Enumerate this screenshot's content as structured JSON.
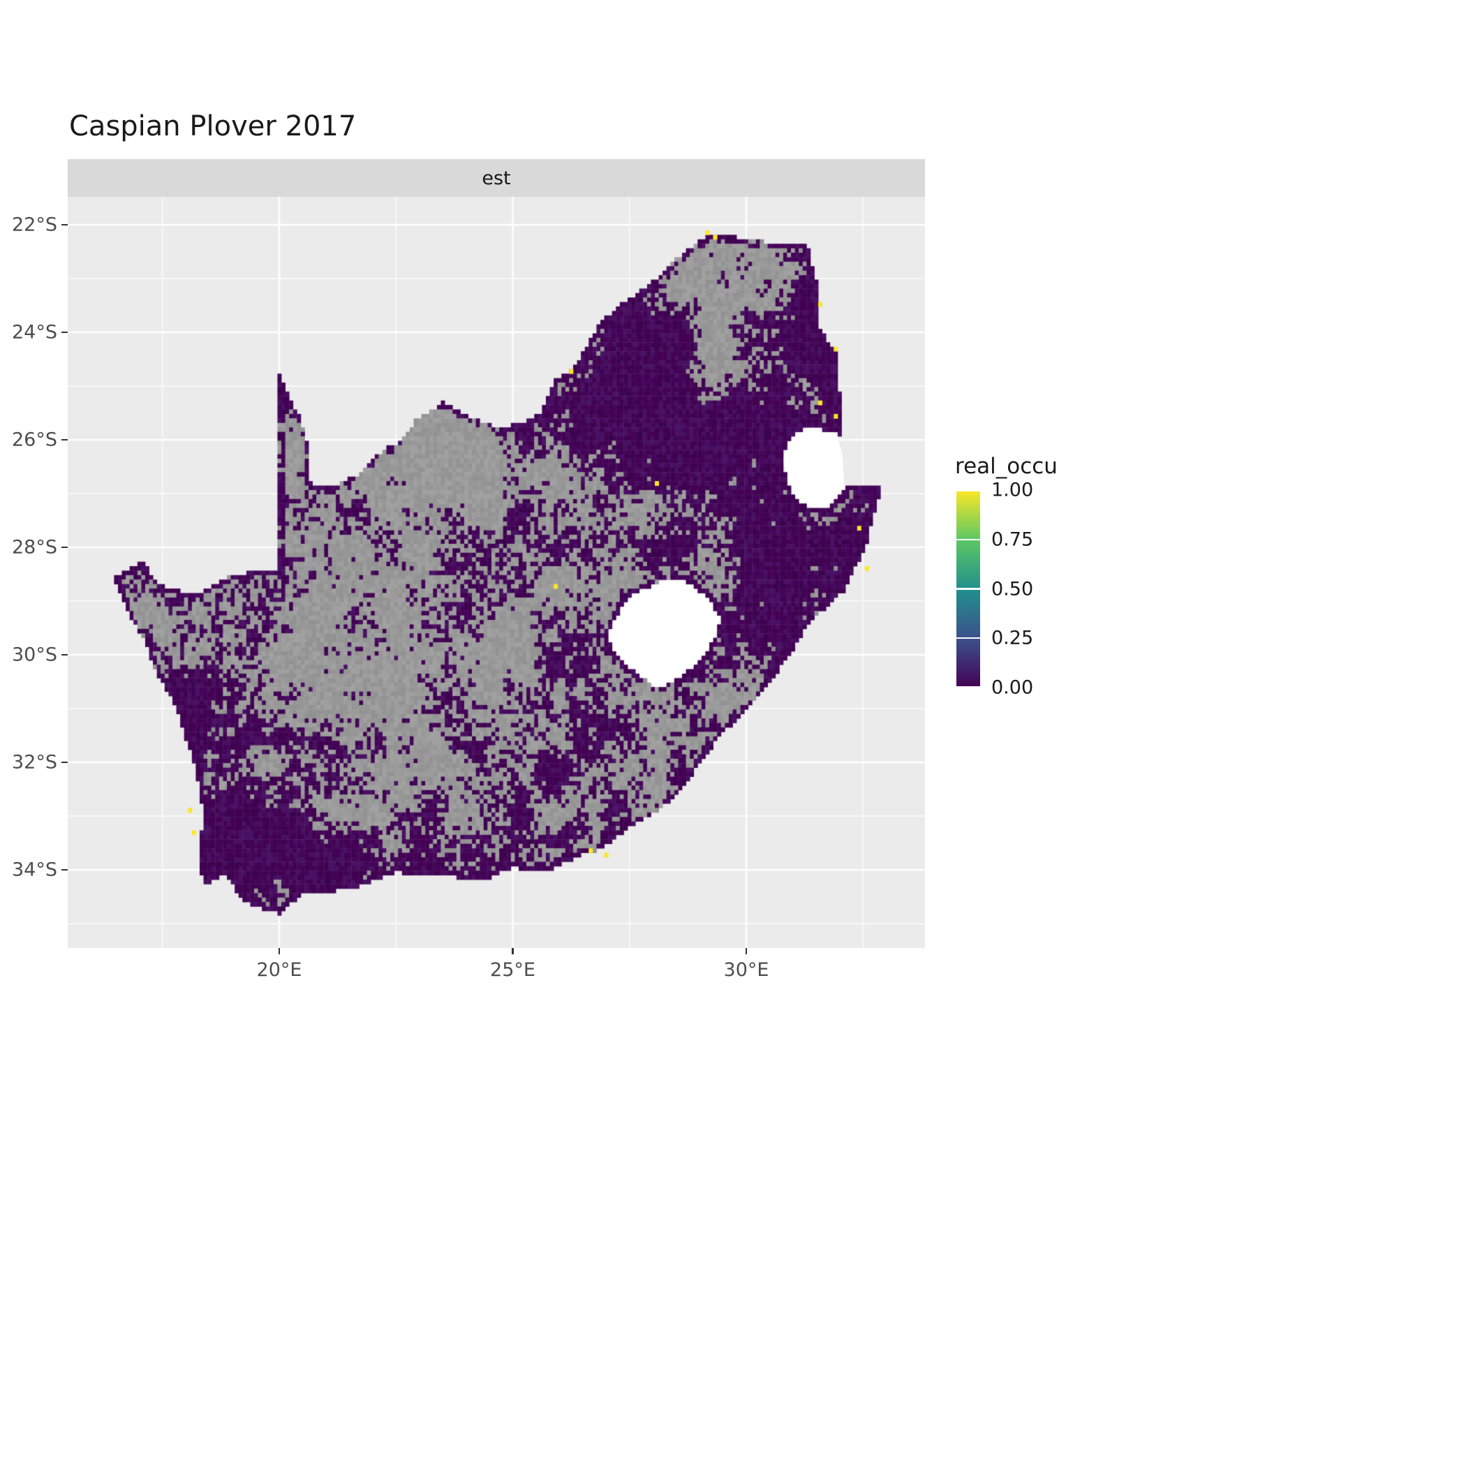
{
  "figure": {
    "background_color": "#FFFFFF",
    "panel_background_color": "#EBEBEB",
    "strip_background_color": "#D9D9D9",
    "gridline_color": "#FFFFFF",
    "axis_text_color": "#4D4D4D",
    "title_color": "#1A1A1A",
    "tick_mark_color": "#333333"
  },
  "chart_data": {
    "type": "heatmap",
    "subtype": "gridded-occupancy-raster-map",
    "region": "South Africa",
    "title": "Caspian Plover 2017",
    "facet": "est",
    "x_axis": {
      "label": "",
      "ticks": [
        {
          "value": 20,
          "label": "20°E"
        },
        {
          "value": 25,
          "label": "25°E"
        },
        {
          "value": 30,
          "label": "30°E"
        }
      ],
      "minor_gridlines": [
        17.5,
        22.5,
        27.5,
        32.5
      ],
      "visible_range_deg_east": [
        15.5,
        33.8
      ]
    },
    "y_axis": {
      "label": "",
      "ticks": [
        {
          "value": -22,
          "label": "22°S"
        },
        {
          "value": -24,
          "label": "24°S"
        },
        {
          "value": -26,
          "label": "26°S"
        },
        {
          "value": -28,
          "label": "28°S"
        },
        {
          "value": -30,
          "label": "30°S"
        },
        {
          "value": -32,
          "label": "32°S"
        },
        {
          "value": -34,
          "label": "34°S"
        }
      ],
      "minor_gridlines": [
        -23,
        -25,
        -27,
        -29,
        -31,
        -33,
        -35
      ],
      "visible_range_deg_lat": [
        -35.4,
        -21.5
      ]
    },
    "legend": {
      "title": "real_occu",
      "position": "right",
      "ticks": [
        {
          "value": 1.0,
          "label": "1.00"
        },
        {
          "value": 0.75,
          "label": "0.75"
        },
        {
          "value": 0.5,
          "label": "0.50"
        },
        {
          "value": 0.25,
          "label": "0.25"
        },
        {
          "value": 0.0,
          "label": "0.00"
        }
      ],
      "colormap": "viridis",
      "stops": [
        {
          "pos": 0.0,
          "color": "#440154"
        },
        {
          "pos": 0.25,
          "color": "#3B528B"
        },
        {
          "pos": 0.5,
          "color": "#21908C"
        },
        {
          "pos": 0.75,
          "color": "#5DC863"
        },
        {
          "pos": 1.0,
          "color": "#FDE725"
        }
      ]
    },
    "cell_size_deg": 0.0833,
    "cell_colors": {
      "occupancy_zero": "#440154",
      "occupancy_zero_palette": [
        "#440154",
        "#45065A",
        "#3D034F",
        "#481062"
      ],
      "no_data_gray": "#9A9A9A",
      "no_data_palette": [
        "#9B9B9B",
        "#969696",
        "#A0A0A0",
        "#929292"
      ],
      "occupancy_one": "#FDE725",
      "outside_region": "#EBEBEB",
      "enclave_fill": "#FFFFFF"
    },
    "high_occupancy_cells": [
      {
        "lon": 29.15,
        "lat": -22.15,
        "value": 1.0
      },
      {
        "lon": 29.3,
        "lat": -22.2,
        "value": 1.0
      },
      {
        "lon": 31.55,
        "lat": -23.45,
        "value": 1.0
      },
      {
        "lon": 31.9,
        "lat": -24.35,
        "value": 1.0
      },
      {
        "lon": 26.25,
        "lat": -24.75,
        "value": 1.0
      },
      {
        "lon": 31.6,
        "lat": -25.3,
        "value": 1.0
      },
      {
        "lon": 31.9,
        "lat": -25.6,
        "value": 1.0
      },
      {
        "lon": 28.05,
        "lat": -26.8,
        "value": 1.0
      },
      {
        "lon": 32.45,
        "lat": -27.65,
        "value": 1.0
      },
      {
        "lon": 32.55,
        "lat": -28.4,
        "value": 1.0
      },
      {
        "lon": 25.95,
        "lat": -28.75,
        "value": 1.0
      },
      {
        "lon": 18.1,
        "lat": -32.85,
        "value": 1.0
      },
      {
        "lon": 18.2,
        "lat": -33.3,
        "value": 1.0
      },
      {
        "lon": 26.7,
        "lat": -33.6,
        "value": 1.0
      },
      {
        "lon": 27.0,
        "lat": -33.75,
        "value": 1.0
      }
    ],
    "outline": [
      [
        16.45,
        -28.58
      ],
      [
        17.05,
        -28.25
      ],
      [
        17.45,
        -28.7
      ],
      [
        18.2,
        -28.88
      ],
      [
        19.0,
        -28.5
      ],
      [
        19.55,
        -28.45
      ],
      [
        19.99,
        -28.42
      ],
      [
        19.99,
        -24.77
      ],
      [
        20.45,
        -25.6
      ],
      [
        20.62,
        -26.15
      ],
      [
        20.68,
        -26.85
      ],
      [
        21.1,
        -26.87
      ],
      [
        21.7,
        -26.65
      ],
      [
        22.2,
        -26.2
      ],
      [
        22.65,
        -26.0
      ],
      [
        22.9,
        -25.65
      ],
      [
        23.5,
        -25.3
      ],
      [
        24.2,
        -25.62
      ],
      [
        24.75,
        -25.8
      ],
      [
        25.35,
        -25.62
      ],
      [
        25.6,
        -25.47
      ],
      [
        25.9,
        -24.9
      ],
      [
        26.3,
        -24.65
      ],
      [
        26.85,
        -23.85
      ],
      [
        27.2,
        -23.55
      ],
      [
        27.95,
        -23.1
      ],
      [
        28.35,
        -22.75
      ],
      [
        29.05,
        -22.25
      ],
      [
        29.45,
        -22.15
      ],
      [
        30.1,
        -22.3
      ],
      [
        31.3,
        -22.35
      ],
      [
        31.55,
        -23.2
      ],
      [
        31.55,
        -23.9
      ],
      [
        31.95,
        -24.4
      ],
      [
        32.0,
        -25.1
      ],
      [
        32.0,
        -25.95
      ],
      [
        31.4,
        -25.75
      ],
      [
        30.95,
        -25.95
      ],
      [
        30.78,
        -26.35
      ],
      [
        30.9,
        -26.85
      ],
      [
        31.15,
        -27.2
      ],
      [
        31.65,
        -27.3
      ],
      [
        31.97,
        -27.1
      ],
      [
        32.13,
        -26.85
      ],
      [
        32.9,
        -26.86
      ],
      [
        32.55,
        -28.0
      ],
      [
        32.1,
        -28.8
      ],
      [
        31.35,
        -29.4
      ],
      [
        31.05,
        -29.85
      ],
      [
        30.6,
        -30.4
      ],
      [
        30.2,
        -30.85
      ],
      [
        29.4,
        -31.55
      ],
      [
        28.9,
        -32.15
      ],
      [
        28.55,
        -32.6
      ],
      [
        28.0,
        -32.95
      ],
      [
        27.45,
        -33.25
      ],
      [
        26.9,
        -33.6
      ],
      [
        26.4,
        -33.75
      ],
      [
        25.65,
        -34.05
      ],
      [
        25.0,
        -33.95
      ],
      [
        24.4,
        -34.2
      ],
      [
        23.35,
        -34.1
      ],
      [
        22.5,
        -34.05
      ],
      [
        21.5,
        -34.37
      ],
      [
        20.5,
        -34.45
      ],
      [
        20.0,
        -34.82
      ],
      [
        19.3,
        -34.62
      ],
      [
        18.8,
        -34.08
      ],
      [
        18.35,
        -34.3
      ],
      [
        18.32,
        -33.9
      ],
      [
        18.35,
        -32.8
      ],
      [
        18.2,
        -32.1
      ],
      [
        17.8,
        -31.0
      ],
      [
        17.35,
        -30.3
      ],
      [
        17.15,
        -29.8
      ],
      [
        16.75,
        -29.2
      ]
    ],
    "enclaves": {
      "lesotho": [
        [
          27.05,
          -29.6
        ],
        [
          27.3,
          -29.15
        ],
        [
          27.55,
          -28.9
        ],
        [
          28.1,
          -28.65
        ],
        [
          28.6,
          -28.58
        ],
        [
          29.15,
          -28.9
        ],
        [
          29.45,
          -29.3
        ],
        [
          29.3,
          -29.75
        ],
        [
          28.9,
          -30.2
        ],
        [
          28.35,
          -30.55
        ],
        [
          28.15,
          -30.65
        ],
        [
          27.75,
          -30.42
        ],
        [
          27.35,
          -30.12
        ],
        [
          27.1,
          -29.9
        ]
      ],
      "eswatini": [
        [
          31.95,
          -25.9
        ],
        [
          31.4,
          -25.73
        ],
        [
          30.95,
          -25.95
        ],
        [
          30.78,
          -26.35
        ],
        [
          30.9,
          -26.85
        ],
        [
          31.15,
          -27.2
        ],
        [
          31.65,
          -27.32
        ],
        [
          31.97,
          -27.08
        ],
        [
          32.1,
          -26.9
        ],
        [
          32.06,
          -26.3
        ]
      ]
    },
    "density_regions": [
      {
        "lon": 27.8,
        "lat": -25.2,
        "sx": 2.0,
        "sy": 1.5,
        "amp": 0.6
      },
      {
        "lon": 30.0,
        "lat": -26.1,
        "sx": 1.2,
        "sy": 1.0,
        "amp": 0.3
      },
      {
        "lon": 31.8,
        "lat": -24.0,
        "sx": 0.7,
        "sy": 1.8,
        "amp": 0.5
      },
      {
        "lon": 29.1,
        "lat": -24.6,
        "sx": 0.8,
        "sy": 0.5,
        "amp": -0.55
      },
      {
        "lon": 29.2,
        "lat": -23.3,
        "sx": 1.0,
        "sy": 0.6,
        "amp": -0.35
      },
      {
        "lon": 30.6,
        "lat": -28.7,
        "sx": 1.1,
        "sy": 1.5,
        "amp": 0.35
      },
      {
        "lon": 32.4,
        "lat": -27.6,
        "sx": 0.5,
        "sy": 1.1,
        "amp": 0.45
      },
      {
        "lon": 19.6,
        "lat": -33.6,
        "sx": 1.4,
        "sy": 1.1,
        "amp": 0.55
      },
      {
        "lon": 22.5,
        "lat": -34.2,
        "sx": 1.8,
        "sy": 0.6,
        "amp": 0.3
      },
      {
        "lon": 18.0,
        "lat": -31.3,
        "sx": 0.7,
        "sy": 1.5,
        "amp": 0.25
      },
      {
        "lon": 23.0,
        "lat": -26.3,
        "sx": 2.0,
        "sy": 1.4,
        "amp": -0.3
      },
      {
        "lon": 22.3,
        "lat": -30.3,
        "sx": 2.2,
        "sy": 1.6,
        "amp": -0.25
      },
      {
        "lon": 26.6,
        "lat": -28.4,
        "sx": 1.2,
        "sy": 1.0,
        "amp": -0.1
      },
      {
        "lon": 25.3,
        "lat": -31.8,
        "sx": 1.3,
        "sy": 1.0,
        "amp": 0.15
      }
    ],
    "summary": "Raster of ~5-minute grid cells covering South Africa; estimated occupancy (est) is 0 (dark purple) for most cells, gray cells have no estimate, and a few isolated cells are near 1.0 (yellow). Lesotho and Eswatini areas are blank."
  }
}
